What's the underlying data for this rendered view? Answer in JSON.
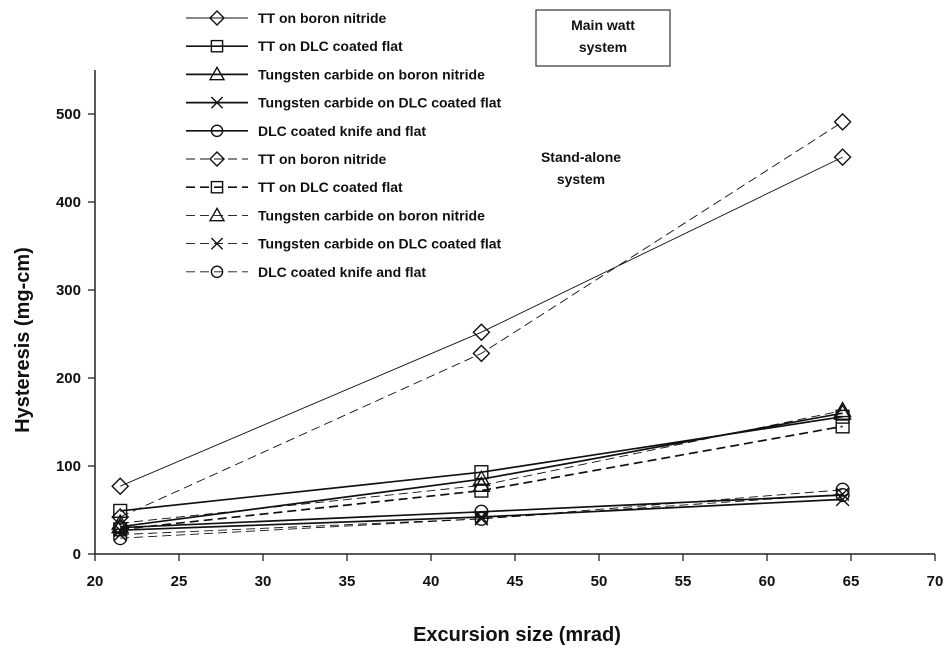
{
  "chart_data": {
    "type": "line",
    "title": "",
    "xlabel": "Excursion size (mrad)",
    "ylabel": "Hysteresis (mg-cm)",
    "xlim": [
      20,
      70
    ],
    "ylim": [
      0,
      550
    ],
    "x_ticks": [
      "20",
      "25",
      "30",
      "35",
      "40",
      "45",
      "50",
      "55",
      "60",
      "65",
      "70"
    ],
    "y_ticks": [
      "0",
      "100",
      "200",
      "300",
      "400",
      "500"
    ],
    "grid": false,
    "legend_position": "top-left",
    "annotations": [
      {
        "lines": [
          "Main watt",
          "system"
        ]
      },
      {
        "lines": [
          "Stand-alone",
          "system"
        ]
      }
    ],
    "series": [
      {
        "name": "TT on boron nitride",
        "marker": "diamond",
        "line": "solid",
        "weight": "thin",
        "x": [
          21.5,
          43,
          64.5
        ],
        "y": [
          77,
          252,
          451
        ]
      },
      {
        "name": "TT on DLC coated flat",
        "marker": "square",
        "line": "solid",
        "weight": "bold",
        "x": [
          21.5,
          43,
          64.5
        ],
        "y": [
          49,
          93,
          156
        ]
      },
      {
        "name": "Tungsten carbide on boron nitride",
        "marker": "triangle",
        "line": "solid",
        "weight": "bold",
        "x": [
          21.5,
          43,
          64.5
        ],
        "y": [
          31,
          85,
          160
        ]
      },
      {
        "name": "Tungsten carbide on DLC coated flat",
        "marker": "x",
        "line": "solid",
        "weight": "bold",
        "x": [
          21.5,
          43,
          64.5
        ],
        "y": [
          27,
          42,
          62
        ]
      },
      {
        "name": "DLC coated knife and flat",
        "marker": "circle",
        "line": "solid",
        "weight": "bold",
        "x": [
          21.5,
          43,
          64.5
        ],
        "y": [
          30,
          48,
          67
        ]
      },
      {
        "name": "TT on boron nitride",
        "marker": "diamond",
        "line": "dashed",
        "weight": "thin",
        "x": [
          21.5,
          43,
          64.5
        ],
        "y": [
          42,
          228,
          491
        ]
      },
      {
        "name": "TT on DLC coated flat",
        "marker": "square",
        "line": "dashed",
        "weight": "bold",
        "x": [
          21.5,
          43,
          64.5
        ],
        "y": [
          28,
          72,
          145
        ]
      },
      {
        "name": "Tungsten carbide on boron nitride",
        "marker": "triangle",
        "line": "dashed",
        "weight": "thin",
        "x": [
          21.5,
          43,
          64.5
        ],
        "y": [
          35,
          78,
          163
        ]
      },
      {
        "name": "Tungsten carbide on DLC coated flat",
        "marker": "x",
        "line": "dashed",
        "weight": "thin",
        "x": [
          21.5,
          43,
          64.5
        ],
        "y": [
          22,
          40,
          68
        ]
      },
      {
        "name": "DLC coated knife and flat",
        "marker": "circle",
        "line": "dashed",
        "weight": "thin",
        "x": [
          21.5,
          43,
          64.5
        ],
        "y": [
          18,
          40,
          73
        ]
      }
    ]
  }
}
